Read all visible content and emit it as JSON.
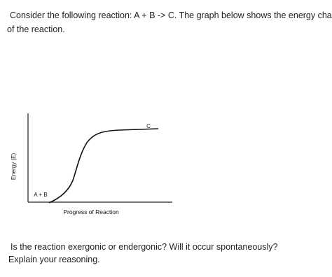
{
  "intro": [
    "Consider the following reaction: A + B -> C. The graph below shows the energy change",
    "of the reaction."
  ],
  "graph": {
    "y_label": "Energy (E)",
    "x_label": "Progress of Reaction",
    "reactant_label": "A + B",
    "product_label": "C"
  },
  "question": [
    "Is the reaction exergonic or endergonic? Will it occur spontaneously?",
    "Explain your reasoning."
  ]
}
